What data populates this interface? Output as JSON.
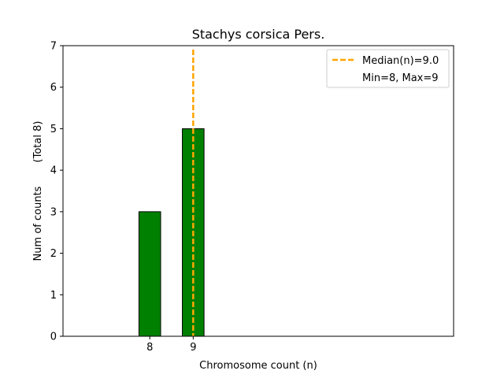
{
  "chart_data": {
    "type": "bar",
    "title": "Stachys corsica Pers.",
    "xlabel": "Chromosome count (n)",
    "ylabel": "Num of counts",
    "ylabel_secondary": "(Total 8)",
    "xlim": [
      6,
      15
    ],
    "ylim": [
      0,
      7
    ],
    "bar_width": 0.5,
    "bars": [
      {
        "x": 8,
        "value": 3
      },
      {
        "x": 9,
        "value": 5
      }
    ],
    "x_ticks": [
      {
        "value": 8,
        "label": "8"
      },
      {
        "value": 9,
        "label": "9"
      }
    ],
    "y_ticks": [
      {
        "value": 0,
        "label": "0"
      },
      {
        "value": 1,
        "label": "1"
      },
      {
        "value": 2,
        "label": "2"
      },
      {
        "value": 3,
        "label": "3"
      },
      {
        "value": 4,
        "label": "4"
      },
      {
        "value": 5,
        "label": "5"
      },
      {
        "value": 6,
        "label": "6"
      },
      {
        "value": 7,
        "label": "7"
      }
    ],
    "baseline_end_x": 12.2,
    "median_line": {
      "x": 9.0
    },
    "legend": {
      "position": "top-right",
      "entries": [
        {
          "label": "Median(n)=9.0",
          "style": "dashed-line"
        },
        {
          "label": "Min=8, Max=9",
          "style": "none"
        }
      ]
    },
    "grid": false,
    "colors": {
      "bar": "#008000",
      "bar_edge": "#000000",
      "median": "#FFA500"
    }
  }
}
